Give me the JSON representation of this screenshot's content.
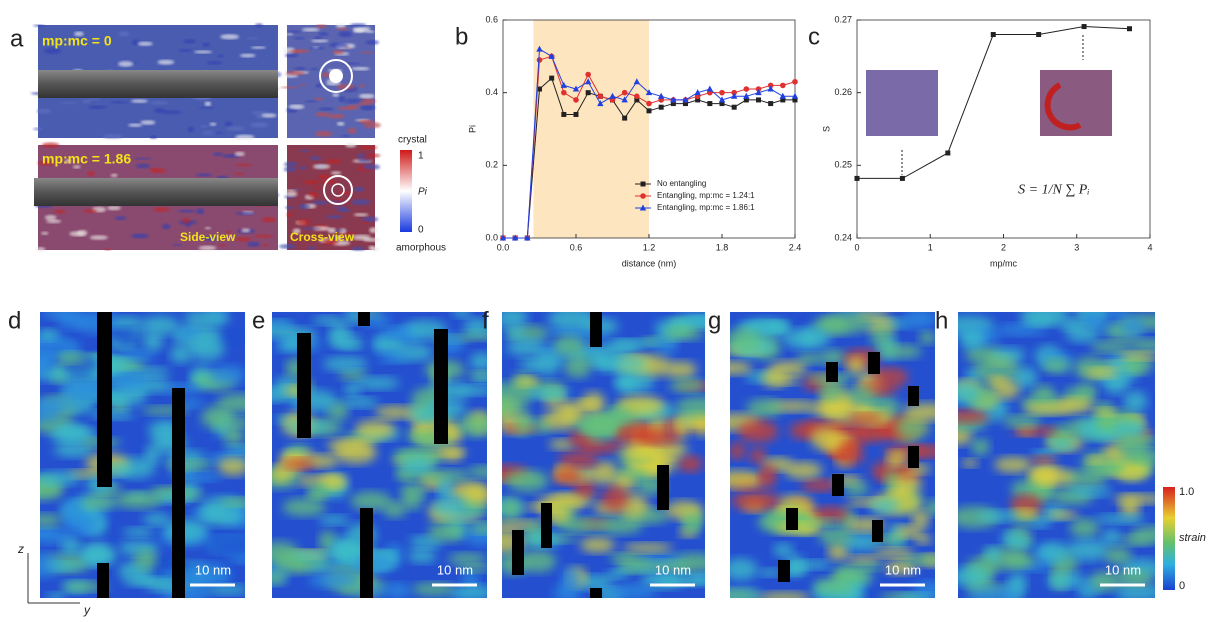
{
  "panel_labels": [
    "a",
    "b",
    "c",
    "d",
    "e",
    "f",
    "g",
    "h"
  ],
  "panel_a": {
    "top_ratio": "mp:mc = 0",
    "bottom_ratio": "mp:mc = 1.86",
    "side_view": "Side-view",
    "cross_view": "Cross-view",
    "colorbar": {
      "top_label": "crystal",
      "max": "1",
      "symbol": "Pi",
      "min": "0",
      "bottom_label": "amorphous"
    }
  },
  "chart_data": [
    {
      "type": "line",
      "xlabel": "distance (nm)",
      "ylabel": "Pi",
      "x": [
        0,
        0.1,
        0.2,
        0.3,
        0.4,
        0.5,
        0.6,
        0.7,
        0.8,
        0.9,
        1.0,
        1.1,
        1.2,
        1.3,
        1.4,
        1.5,
        1.6,
        1.7,
        1.8,
        1.9,
        2.0,
        2.1,
        2.2,
        2.3,
        2.4
      ],
      "xlim": [
        0,
        2.4
      ],
      "ylim": [
        0,
        0.6
      ],
      "xticks": [
        {
          "value": 0,
          "label": "0.0"
        },
        0.6,
        1.2,
        1.8,
        2.4
      ],
      "yticks": [
        {
          "value": 0,
          "label": "0.0"
        },
        0.2,
        0.4,
        0.6
      ],
      "highlight": {
        "range": [
          0.25,
          1.2
        ],
        "color": "#fde6bf"
      },
      "legend": "lower right",
      "series": [
        {
          "name": "No entangling",
          "color": "#222222",
          "marker": "square",
          "values": [
            0,
            0,
            0,
            0.41,
            0.44,
            0.34,
            0.34,
            0.4,
            0.39,
            0.38,
            0.33,
            0.38,
            0.35,
            0.36,
            0.37,
            0.37,
            0.38,
            0.37,
            0.37,
            0.36,
            0.38,
            0.38,
            0.37,
            0.38,
            0.38
          ]
        },
        {
          "name": "Entangling, mp:mc = 1.24:1",
          "color": "#e03030",
          "marker": "circle",
          "values": [
            0,
            0,
            0,
            0.49,
            0.5,
            0.4,
            0.38,
            0.45,
            0.39,
            0.38,
            0.4,
            0.39,
            0.37,
            0.38,
            0.38,
            0.38,
            0.39,
            0.4,
            0.4,
            0.4,
            0.41,
            0.41,
            0.42,
            0.42,
            0.43
          ]
        },
        {
          "name": "Entangling, mp:mc = 1.86:1",
          "color": "#2040e0",
          "marker": "triangle",
          "values": [
            0,
            0,
            0,
            0.52,
            0.5,
            0.42,
            0.41,
            0.43,
            0.37,
            0.39,
            0.38,
            0.43,
            0.4,
            0.39,
            0.38,
            0.38,
            0.4,
            0.41,
            0.38,
            0.39,
            0.39,
            0.4,
            0.41,
            0.39,
            0.39
          ]
        }
      ]
    },
    {
      "type": "line",
      "xlabel": "mp/mc",
      "ylabel": "S",
      "annotation": "S = 1/N ∑ Pᵢ",
      "x": [
        0,
        0.62,
        1.24,
        1.86,
        2.48,
        3.1,
        3.72
      ],
      "xlim": [
        0,
        4
      ],
      "ylim": [
        0.24,
        0.27
      ],
      "xticks": [
        0,
        1,
        2,
        3,
        4
      ],
      "yticks": [
        0.24,
        0.25,
        0.26,
        0.27
      ],
      "series": [
        {
          "color": "#222222",
          "marker": "square",
          "values": [
            0.2482,
            0.2482,
            0.2517,
            0.268,
            0.268,
            0.2691,
            0.2688
          ]
        }
      ]
    }
  ],
  "strain_maps": {
    "scale_bars": [
      "10 nm",
      "10 nm",
      "10 nm",
      "10 nm",
      "10 nm"
    ],
    "colorbar": {
      "max": "1.0",
      "label": "strain",
      "min": "0"
    },
    "axes": {
      "vertical": "z",
      "horizontal": "y"
    }
  }
}
